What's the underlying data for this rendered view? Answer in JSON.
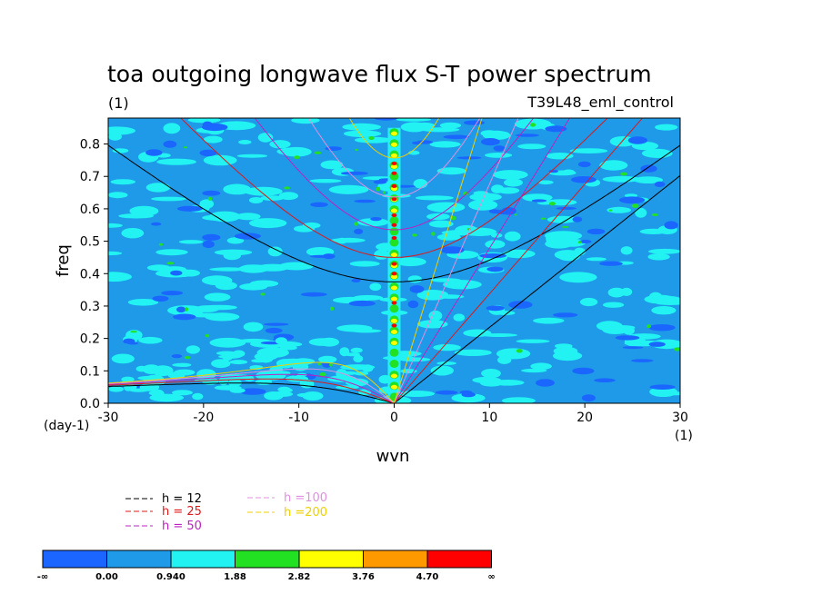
{
  "chart_data": {
    "type": "heatmap",
    "title": "toa outgoing longwave flux S-T power spectrum",
    "subtitle_left": "(1)",
    "subtitle_right": "T39L48_eml_control",
    "xlabel": "wvn",
    "ylabel": "freq",
    "x_unit_label": "(1)",
    "y_unit_label": "(day-1)",
    "xlim": [
      -30,
      30
    ],
    "ylim": [
      0,
      0.88
    ],
    "x_ticks": [
      "-30",
      "-20",
      "-10",
      "0",
      "10",
      "20",
      "30"
    ],
    "y_ticks": [
      "0.0",
      "0.1",
      "0.2",
      "0.3",
      "0.4",
      "0.5",
      "0.6",
      "0.7",
      "0.8"
    ],
    "colorbar": {
      "levels": [
        "-∞",
        "0.00",
        "0.940",
        "1.88",
        "2.82",
        "3.76",
        "4.70",
        "∞"
      ],
      "colors": [
        "#1a66ff",
        "#1e9ae8",
        "#22f2f2",
        "#22e022",
        "#ffff00",
        "#ff9900",
        "#ff0000"
      ]
    },
    "series": [
      {
        "name": "h = 12",
        "color": "#000000",
        "h": 12
      },
      {
        "name": "h = 25",
        "color": "#e01818",
        "h": 25
      },
      {
        "name": "h = 50",
        "color": "#c020c0",
        "h": 50
      },
      {
        "name": "h =100",
        "color": "#e090e0",
        "h": 100
      },
      {
        "name": "h =200",
        "color": "#f0d000",
        "h": 200
      }
    ]
  }
}
